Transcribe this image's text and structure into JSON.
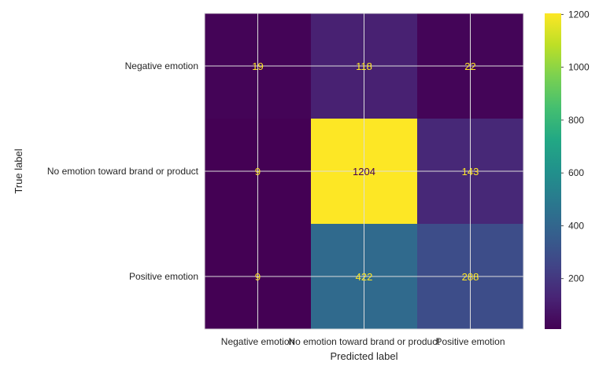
{
  "chart_data": {
    "type": "heatmap",
    "title": "",
    "xlabel": "Predicted label",
    "ylabel": "True label",
    "x_categories": [
      "Negative emotion",
      "No emotion toward brand or product",
      "Positive emotion"
    ],
    "y_categories": [
      "Negative emotion",
      "No emotion toward brand or product",
      "Positive emotion"
    ],
    "values": [
      [
        19,
        118,
        22
      ],
      [
        9,
        1204,
        143
      ],
      [
        9,
        422,
        288
      ]
    ],
    "colormap": "viridis",
    "colorbar": {
      "min": 9,
      "max": 1204,
      "ticks": [
        200,
        400,
        600,
        800,
        1000,
        1200
      ]
    },
    "grid": true,
    "grid_color": "#dddddd",
    "text_color_dark_cells": "#fde725",
    "text_color_light_cells": "#440154"
  }
}
